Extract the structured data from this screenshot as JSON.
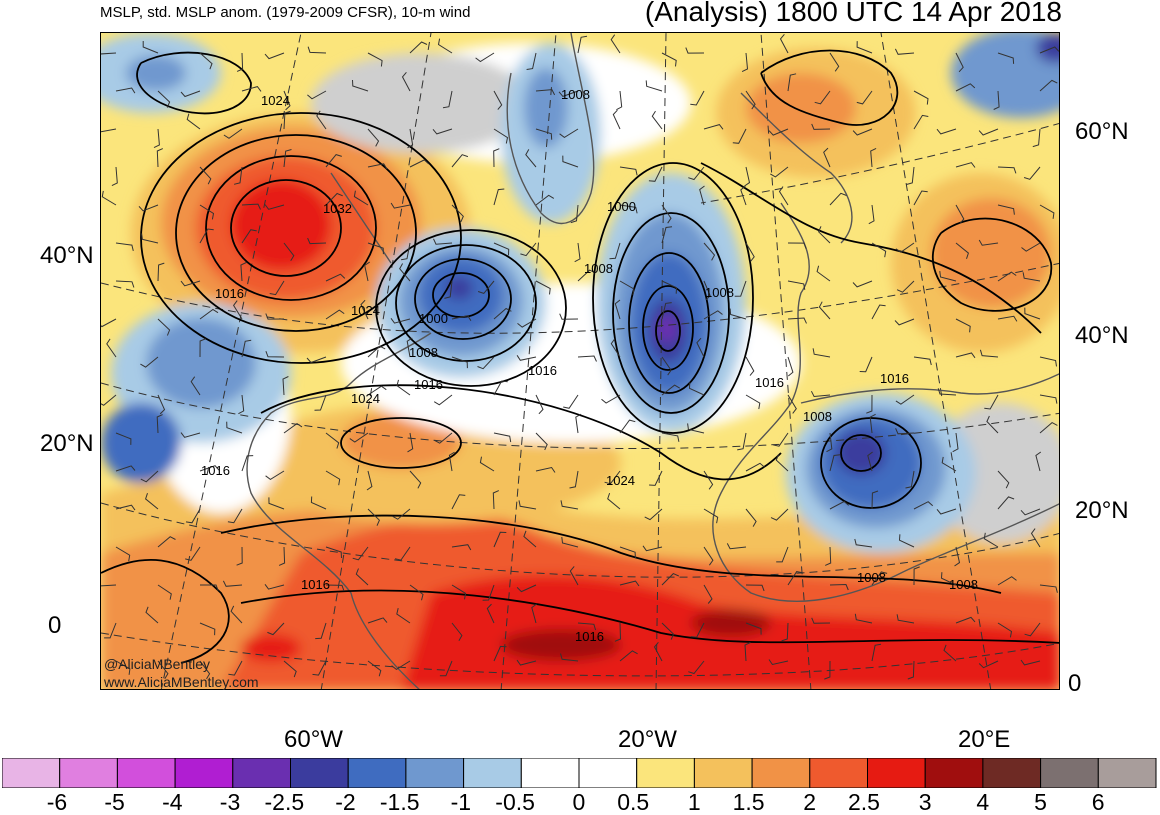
{
  "header": {
    "left_title": "MSLP, std. MSLP anom. (1979-2009 CFSR), 10-m wind",
    "right_title": "(Analysis) 1800 UTC 14 Apr 2018"
  },
  "axes": {
    "lat_left": [
      "40°N",
      "20°N",
      "0"
    ],
    "lat_right": [
      "60°N",
      "40°N",
      "20°N",
      "0"
    ],
    "lon_bottom": [
      "60°W",
      "20°W",
      "20°E"
    ]
  },
  "credits": {
    "handle": "@AliciaMBentley",
    "website": "www.AliciaMBentley.com"
  },
  "isobar_labels": [
    "1024",
    "1032",
    "1016",
    "1024",
    "1000",
    "1008",
    "1016",
    "1008",
    "1016",
    "1000",
    "1008",
    "1008",
    "1016",
    "1016",
    "1008",
    "1024",
    "1024",
    "1016",
    "1016",
    "1008",
    "1008",
    "1016"
  ],
  "colorbar": {
    "labels": [
      "-6",
      "-5",
      "-4",
      "-3",
      "-2.5",
      "-2",
      "-1.5",
      "-1",
      "-0.5",
      "0",
      "0.5",
      "1",
      "1.5",
      "2",
      "2.5",
      "3",
      "4",
      "5",
      "6"
    ],
    "colors": [
      "#e8b4e6",
      "#e07fe0",
      "#d24fdc",
      "#b01ed2",
      "#6a2fb0",
      "#3b3c9e",
      "#3f6cc0",
      "#6f98cf",
      "#a8cbe6",
      "#ffffff",
      "#ffffff",
      "#fbe57c",
      "#f4c15c",
      "#f19246",
      "#ef5a2e",
      "#e61b12",
      "#a00e0e",
      "#6e2a24",
      "#7c7070",
      "#a89d9b"
    ]
  },
  "anomaly_features": [
    {
      "kind": "positive",
      "level": 3,
      "color": "#e61b12"
    },
    {
      "kind": "negative",
      "level": -2.5,
      "color": "#6a2fb0"
    },
    {
      "kind": "negative",
      "level": -2,
      "color": "#3b3c9e"
    }
  ]
}
